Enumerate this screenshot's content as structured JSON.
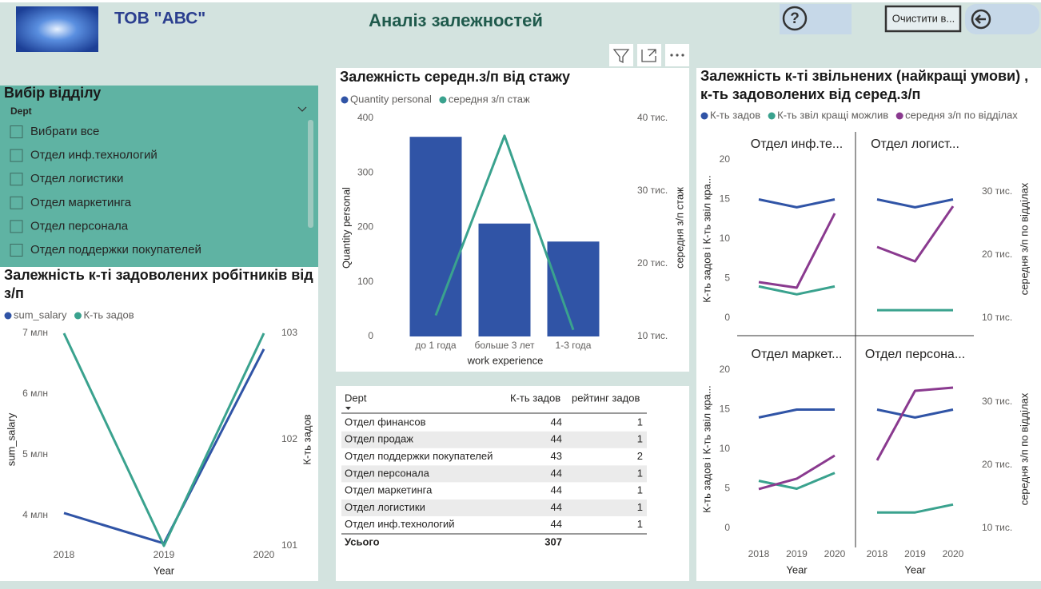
{
  "header": {
    "company": "ТОВ \"АВС\"",
    "title": "Аналіз залежностей",
    "help_icon": "?",
    "clear_button": "Очистити в..."
  },
  "slicer": {
    "title": "Вибір відділу",
    "field": "Dept",
    "items": [
      "Вибрати все",
      "Отдел инф.технологий",
      "Отдел логистики",
      "Отдел маркетинга",
      "Отдел персонала",
      "Отдел поддержки покупателей"
    ]
  },
  "chart_data": [
    {
      "type": "line",
      "title": "Залежність к-ті задоволених робітників від з/п",
      "categories": [
        "2018",
        "2019",
        "2020"
      ],
      "xlabel": "Year",
      "ylabel": "sum_salary",
      "y2label": "К-ть задов",
      "series": [
        {
          "name": "sum_salary",
          "color": "#3054a6",
          "values": [
            4040000,
            3540000,
            6740000
          ]
        },
        {
          "name": "К-ть задов",
          "color": "#3aa28e",
          "axis": "y2",
          "values": [
            103,
            101,
            103
          ]
        }
      ],
      "ylim": [
        3500000,
        7000000
      ],
      "yticks": [
        {
          "value": 4000000,
          "label": "4 млн"
        },
        {
          "value": 5000000,
          "label": "5 млн"
        },
        {
          "value": 6000000,
          "label": "6 млн"
        },
        {
          "value": 7000000,
          "label": "7 млн"
        }
      ],
      "y2lim": [
        101,
        103
      ],
      "y2ticks": [
        101,
        102,
        103
      ]
    },
    {
      "type": "combo",
      "title": "Залежність середн.з/п від стажу",
      "categories": [
        "до 1 года",
        "больше 3 лет",
        "1-3 года"
      ],
      "xlabel": "work experience",
      "ylabel": "Quantity personal",
      "y2label": "середня з/п стаж",
      "series": [
        {
          "name": "Quantity personal",
          "type": "bar",
          "color": "#3054a6",
          "values": [
            366,
            207,
            174
          ]
        },
        {
          "name": "середня з/п стаж",
          "type": "line",
          "axis": "y2",
          "color": "#3aa28e",
          "values": [
            12900,
            37600,
            10900
          ]
        }
      ],
      "ylim": [
        0,
        400
      ],
      "yticks": [
        0,
        100,
        200,
        300,
        400
      ],
      "y2lim": [
        10000,
        40000
      ],
      "y2ticks": [
        {
          "value": 10000,
          "label": "10 тис."
        },
        {
          "value": 20000,
          "label": "20 тис."
        },
        {
          "value": 30000,
          "label": "30 тис."
        },
        {
          "value": 40000,
          "label": "40 тис."
        }
      ]
    },
    {
      "type": "multiples",
      "title": "Залежність к-ті звільнених (найкращі умови) , к-ть задоволених від серед.з/п",
      "categories": [
        "2018",
        "2019",
        "2020"
      ],
      "xlabel": "Year",
      "ylabel": "К-ть задов і К-ть звіл кра...",
      "y2label": "середня з/п по відділах",
      "series": [
        {
          "name": "К-ть задов",
          "color": "#3054a6"
        },
        {
          "name": "К-ть звіл кращі можлив",
          "color": "#3aa28e"
        },
        {
          "name": "середня з/п по відділах",
          "color": "#8a3a8f",
          "axis": "y2"
        }
      ],
      "panels": [
        {
          "title": "Отдел инф.те...",
          "values": [
            [
              15,
              14,
              15
            ],
            [
              4,
              3,
              4
            ],
            [
              15680,
              14800,
              26540
            ]
          ]
        },
        {
          "title": "Отдел логист...",
          "values": [
            [
              15,
              14,
              15
            ],
            [
              1,
              1,
              1
            ],
            [
              21240,
              18960,
              27670
            ]
          ]
        },
        {
          "title": "Отдел маркет...",
          "values": [
            [
              14,
              15,
              15
            ],
            [
              6,
              5,
              7
            ],
            [
              16190,
              17830,
              21490
            ]
          ]
        },
        {
          "title": "Отдел персона...",
          "values": [
            [
              15,
              14,
              15
            ],
            [
              2,
              2,
              3
            ],
            [
              20730,
              31720,
              32220
            ]
          ]
        }
      ],
      "ylim": [
        0,
        20
      ],
      "yticks": [
        0,
        5,
        10,
        15,
        20
      ],
      "y2lim": [
        10000,
        35000
      ],
      "y2ticks": [
        {
          "value": 10000,
          "label": "10 тис."
        },
        {
          "value": 20000,
          "label": "20 тис."
        },
        {
          "value": 30000,
          "label": "30 тис."
        }
      ]
    }
  ],
  "table": {
    "columns": [
      "Dept",
      "К-ть задов",
      "рейтинг задов"
    ],
    "rows": [
      [
        "Отдел финансов",
        44,
        1
      ],
      [
        "Отдел продаж",
        44,
        1
      ],
      [
        "Отдел поддержки покупателей",
        43,
        2
      ],
      [
        "Отдел персонала",
        44,
        1
      ],
      [
        "Отдел маркетинга",
        44,
        1
      ],
      [
        "Отдел логистики",
        44,
        1
      ],
      [
        "Отдел инф.технологий",
        44,
        1
      ]
    ],
    "total": {
      "label": "Усього",
      "value": 307
    }
  }
}
